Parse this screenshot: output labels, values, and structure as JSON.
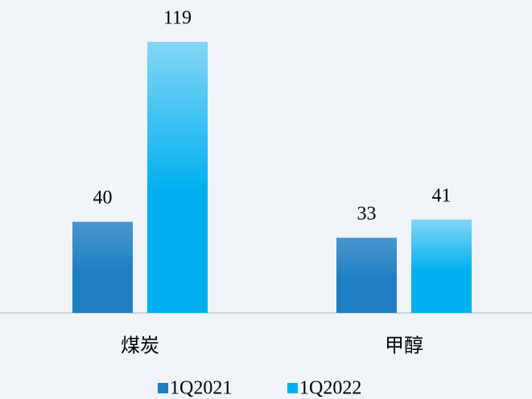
{
  "chart_data": {
    "type": "bar",
    "categories": [
      "煤炭",
      "甲醇"
    ],
    "series": [
      {
        "name": "1Q2021",
        "color": "#1f7fc2",
        "values": [
          40,
          33
        ]
      },
      {
        "name": "1Q2022",
        "color": "#00b0f0",
        "values": [
          119,
          41
        ]
      }
    ]
  }
}
